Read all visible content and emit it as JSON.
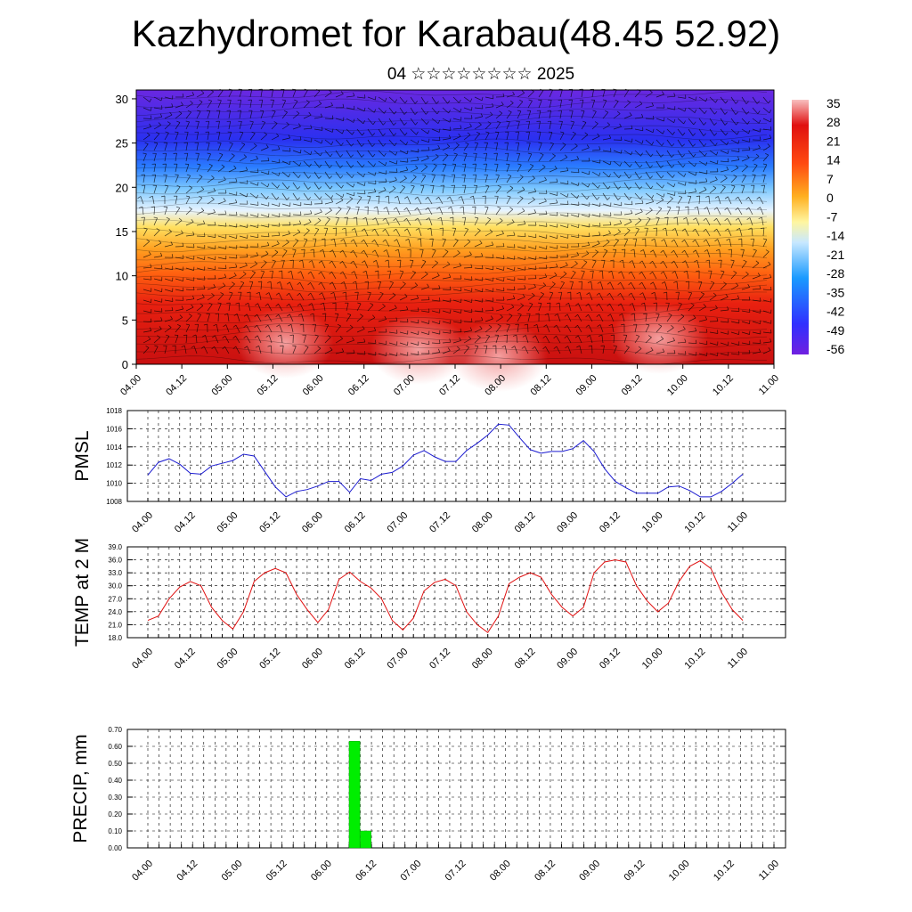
{
  "title": "Kazhydromet for Karabau(48.45 52.92)",
  "subtitle": "04 ☆☆☆☆☆☆☆☆ 2025",
  "colors": {
    "pmsl_line": "#1a1ad0",
    "temp_line": "#e01010",
    "precip_bar": "#00ee00",
    "cross_section_palette": [
      "#7020e0",
      "#3030ff",
      "#3aa0ff",
      "#9ad8ff",
      "#fff6a0",
      "#ffd23a",
      "#ff9a10",
      "#ff4a10",
      "#e01010",
      "#f08080"
    ]
  },
  "chart_data": [
    {
      "type": "heatmap",
      "name_key": "cross_section",
      "title": "",
      "xlabel": "",
      "ylabel": "",
      "x_ticks": [
        "04.00",
        "04.12",
        "05.00",
        "05.12",
        "06.00",
        "06.12",
        "07.00",
        "07.12",
        "08.00",
        "08.12",
        "09.00",
        "09.12",
        "10.00",
        "10.12",
        "11.00"
      ],
      "y_ticks": [
        "0",
        "5",
        "10",
        "15",
        "20",
        "25",
        "30"
      ],
      "ylim": [
        0,
        31
      ],
      "colorbar_labels": [
        "35",
        "28",
        "21",
        "14",
        "7",
        "0",
        "-7",
        "-14",
        "-21",
        "-28",
        "-35",
        "-42",
        "-49",
        "-56"
      ],
      "overlay": "wind barbs"
    },
    {
      "type": "line",
      "ylabel": "PMSL",
      "ylim": [
        1008,
        1018
      ],
      "y_ticks": [
        "1008",
        "1010",
        "1012",
        "1014",
        "1016",
        "1018"
      ],
      "x_ticks": [
        "04.00",
        "04.12",
        "05.00",
        "05.12",
        "06.00",
        "06.12",
        "07.00",
        "07.12",
        "08.00",
        "08.12",
        "09.00",
        "09.12",
        "10.00",
        "10.12",
        "11.00"
      ],
      "grid": true,
      "values": [
        1010.9,
        1012.3,
        1012.7,
        1012.1,
        1011.1,
        1011.0,
        1011.9,
        1012.2,
        1012.5,
        1013.2,
        1013.0,
        1011.3,
        1009.6,
        1008.5,
        1009.1,
        1009.3,
        1009.7,
        1010.2,
        1010.2,
        1009.0,
        1010.5,
        1010.3,
        1011.0,
        1011.2,
        1011.9,
        1013.1,
        1013.6,
        1012.9,
        1012.4,
        1012.4,
        1013.6,
        1014.4,
        1015.3,
        1016.5,
        1016.4,
        1015.0,
        1013.7,
        1013.3,
        1013.5,
        1013.5,
        1013.8,
        1014.7,
        1013.5,
        1011.6,
        1010.2,
        1009.5,
        1008.9,
        1008.9,
        1008.9,
        1009.6,
        1009.7,
        1009.2,
        1008.5,
        1008.5,
        1009.1,
        1010.0,
        1011.0
      ]
    },
    {
      "type": "line",
      "ylabel": "TEMP at 2 M",
      "ylim": [
        18,
        39
      ],
      "y_ticks": [
        "18.0",
        "21.0",
        "24.0",
        "27.0",
        "30.0",
        "33.0",
        "36.0",
        "39.0"
      ],
      "x_ticks": [
        "04.00",
        "04.12",
        "05.00",
        "05.12",
        "06.00",
        "06.12",
        "07.00",
        "07.12",
        "08.00",
        "08.12",
        "09.00",
        "09.12",
        "10.00",
        "10.12",
        "11.00"
      ],
      "grid": true,
      "values": [
        22.0,
        23.0,
        27.0,
        29.7,
        31.0,
        30.0,
        25.0,
        22.0,
        20.0,
        24.0,
        31.0,
        33.0,
        34.0,
        33.0,
        28.0,
        24.5,
        21.5,
        24.5,
        31.5,
        33.2,
        31.0,
        29.5,
        27.0,
        22.0,
        19.8,
        22.5,
        28.8,
        30.8,
        31.5,
        30.0,
        24.0,
        21.0,
        19.2,
        23.0,
        30.5,
        32.0,
        33.0,
        32.0,
        28.0,
        25.0,
        23.0,
        25.0,
        33.0,
        35.5,
        36.0,
        35.5,
        30.0,
        26.5,
        24.0,
        26.0,
        31.0,
        34.5,
        35.8,
        34.0,
        28.5,
        24.5,
        22.0
      ]
    },
    {
      "type": "bar",
      "ylabel": "PRECIP, mm",
      "ylim": [
        0,
        0.7
      ],
      "y_ticks": [
        "0.00",
        "0.10",
        "0.20",
        "0.30",
        "0.40",
        "0.50",
        "0.60",
        "0.70"
      ],
      "x_ticks": [
        "04.00",
        "04.12",
        "05.00",
        "05.12",
        "06.00",
        "06.12",
        "07.00",
        "07.12",
        "08.00",
        "08.12",
        "09.00",
        "09.12",
        "10.00",
        "10.12",
        "11.00"
      ],
      "grid": true,
      "bars": [
        {
          "x": "06.06",
          "value": 0.63
        },
        {
          "x": "06.09",
          "value": 0.1
        }
      ]
    }
  ]
}
